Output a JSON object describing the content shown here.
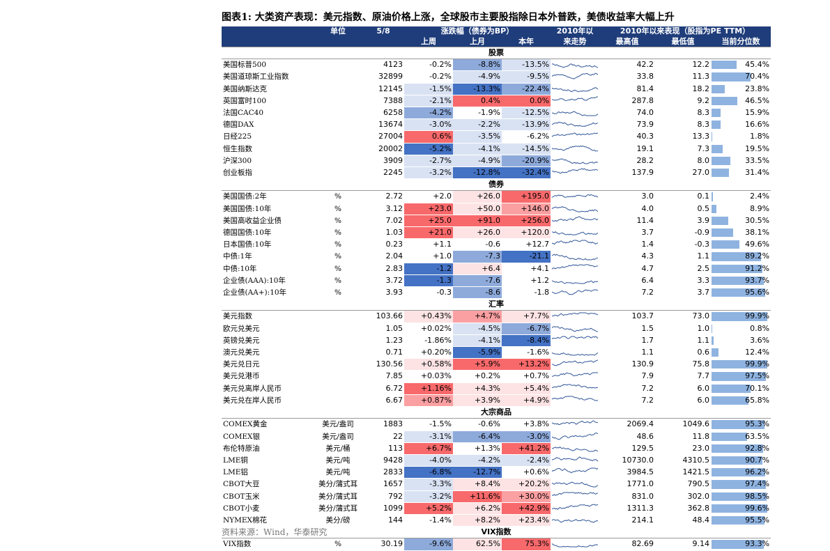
{
  "title": "图表1:  大类资产表现：美元指数、原油价格上涨，全球股市主要股指除日本外普跌，美债收益率大幅上升",
  "header": {
    "unit": "单位",
    "date": "5/8",
    "change_group": "涨跌幅（债券为BP）",
    "week": "上周",
    "month": "上月",
    "ytd": "本年",
    "trend1": "2010年以",
    "trend2": "来走势",
    "since_group": "2010年以来表现（股指为PE TTM）",
    "high": "最高值",
    "low": "最低值",
    "pctile": "当前分位数"
  },
  "colors": {
    "header_bg": "#1f3d7a",
    "neg_strong": "#4472c4",
    "neg_mid": "#8eaadb",
    "neg_light": "#d9e2f3",
    "pos_strong": "#f8696b",
    "pos_mid": "#fba0a2",
    "pos_light": "#fde3e4",
    "bar": "#8fb3e0"
  },
  "sections": [
    {
      "name": "股票",
      "rows": [
        {
          "name": "美国标普500",
          "unit": "",
          "value": "4123",
          "w": "-0.2%",
          "m": "-8.8%",
          "y": "-13.5%",
          "hi": "42.2",
          "lo": "12.2",
          "pct": "45.4%",
          "p": 45.4,
          "cw": "",
          "cm": "neg_mid",
          "cy": "neg_light"
        },
        {
          "name": "美国道琼斯工业指数",
          "unit": "",
          "value": "32899",
          "w": "-0.2%",
          "m": "-4.9%",
          "y": "-9.5%",
          "hi": "33.8",
          "lo": "11.3",
          "pct": "70.4%",
          "p": 70.4,
          "cw": "",
          "cm": "neg_light",
          "cy": "neg_light"
        },
        {
          "name": "美国纳斯达克",
          "unit": "",
          "value": "12145",
          "w": "-1.5%",
          "m": "-13.3%",
          "y": "-22.4%",
          "hi": "81.4",
          "lo": "18.2",
          "pct": "23.8%",
          "p": 23.8,
          "cw": "neg_light",
          "cm": "neg_strong",
          "cy": "neg_mid"
        },
        {
          "name": "英国富时100",
          "unit": "",
          "value": "7388",
          "w": "-2.1%",
          "m": "0.4%",
          "y": "0.0%",
          "hi": "287.8",
          "lo": "9.2",
          "pct": "46.5%",
          "p": 46.5,
          "cw": "neg_light",
          "cm": "pos_strong",
          "cy": "pos_strong"
        },
        {
          "name": "法国CAC40",
          "unit": "",
          "value": "6258",
          "w": "-4.2%",
          "m": "-1.9%",
          "y": "-12.5%",
          "hi": "74.0",
          "lo": "8.3",
          "pct": "15.9%",
          "p": 15.9,
          "cw": "neg_mid",
          "cm": "",
          "cy": "neg_light"
        },
        {
          "name": "德国DAX",
          "unit": "",
          "value": "13674",
          "w": "-3.0%",
          "m": "-2.2%",
          "y": "-13.9%",
          "hi": "73.9",
          "lo": "8.3",
          "pct": "16.6%",
          "p": 16.6,
          "cw": "neg_light",
          "cm": "neg_light",
          "cy": "neg_light"
        },
        {
          "name": "日经225",
          "unit": "",
          "value": "27004",
          "w": "0.6%",
          "m": "-3.5%",
          "y": "-6.2%",
          "hi": "40.3",
          "lo": "13.3",
          "pct": "1.8%",
          "p": 1.8,
          "cw": "pos_strong",
          "cm": "neg_light",
          "cy": ""
        },
        {
          "name": "恒生指数",
          "unit": "",
          "value": "20002",
          "w": "-5.2%",
          "m": "-4.1%",
          "y": "-14.5%",
          "hi": "19.1",
          "lo": "7.3",
          "pct": "19.5%",
          "p": 19.5,
          "cw": "neg_strong",
          "cm": "neg_light",
          "cy": "neg_light"
        },
        {
          "name": "沪深300",
          "unit": "",
          "value": "3909",
          "w": "-2.7%",
          "m": "-4.9%",
          "y": "-20.9%",
          "hi": "28.2",
          "lo": "8.0",
          "pct": "33.5%",
          "p": 33.5,
          "cw": "neg_light",
          "cm": "neg_light",
          "cy": "neg_mid"
        },
        {
          "name": "创业板指",
          "unit": "",
          "value": "2245",
          "w": "-3.2%",
          "m": "-12.8%",
          "y": "-32.4%",
          "hi": "137.9",
          "lo": "27.0",
          "pct": "31.4%",
          "p": 31.4,
          "cw": "neg_light",
          "cm": "neg_strong",
          "cy": "neg_strong"
        }
      ]
    },
    {
      "name": "债券",
      "rows": [
        {
          "name": "美国国债:2年",
          "unit": "%",
          "value": "2.72",
          "w": "+2.0",
          "m": "+26.0",
          "y": "+195.0",
          "hi": "3.0",
          "lo": "0.1",
          "pct": "2.4%",
          "p": 2.4,
          "cw": "",
          "cm": "pos_light",
          "cy": "pos_strong"
        },
        {
          "name": "美国国债:10年",
          "unit": "%",
          "value": "3.12",
          "w": "+23.0",
          "m": "+50.0",
          "y": "+146.0",
          "hi": "4.0",
          "lo": "0.5",
          "pct": "8.9%",
          "p": 8.9,
          "cw": "pos_strong",
          "cm": "pos_light",
          "cy": "pos_mid"
        },
        {
          "name": "美国高收益企业债",
          "unit": "%",
          "value": "7.02",
          "w": "+25.0",
          "m": "+91.0",
          "y": "+256.0",
          "hi": "11.4",
          "lo": "3.9",
          "pct": "30.5%",
          "p": 30.5,
          "cw": "pos_strong",
          "cm": "pos_strong",
          "cy": "pos_strong"
        },
        {
          "name": "德国国债:10年",
          "unit": "%",
          "value": "1.03",
          "w": "+21.0",
          "m": "+26.0",
          "y": "+120.0",
          "hi": "3.7",
          "lo": "-0.9",
          "pct": "38.1%",
          "p": 38.1,
          "cw": "pos_strong",
          "cm": "pos_light",
          "cy": "pos_light"
        },
        {
          "name": "日本国债:10年",
          "unit": "%",
          "value": "0.23",
          "w": "+1.1",
          "m": "-0.6",
          "y": "+12.7",
          "hi": "1.4",
          "lo": "-0.3",
          "pct": "49.6%",
          "p": 49.6,
          "cw": "",
          "cm": "",
          "cy": ""
        },
        {
          "name": "中债:1年",
          "unit": "%",
          "value": "2.04",
          "w": "+1.0",
          "m": "-7.3",
          "y": "-21.1",
          "hi": "4.3",
          "lo": "1.1",
          "pct": "89.2%",
          "p": 89.2,
          "cw": "",
          "cm": "neg_mid",
          "cy": "neg_strong"
        },
        {
          "name": "中债:10年",
          "unit": "%",
          "value": "2.83",
          "w": "-1.2",
          "m": "+6.4",
          "y": "+4.1",
          "hi": "4.7",
          "lo": "2.5",
          "pct": "91.2%",
          "p": 91.2,
          "cw": "neg_strong",
          "cm": "pos_light",
          "cy": ""
        },
        {
          "name": "企业债(AAA):10年",
          "unit": "%",
          "value": "3.72",
          "w": "-1.3",
          "m": "-7.6",
          "y": "+1.2",
          "hi": "6.4",
          "lo": "3.3",
          "pct": "93.7%",
          "p": 93.7,
          "cw": "neg_strong",
          "cm": "neg_mid",
          "cy": ""
        },
        {
          "name": "企业债(AA+):10年",
          "unit": "%",
          "value": "3.93",
          "w": "-0.3",
          "m": "-8.6",
          "y": "-1.8",
          "hi": "7.2",
          "lo": "3.7",
          "pct": "95.6%",
          "p": 95.6,
          "cw": "",
          "cm": "neg_mid",
          "cy": ""
        }
      ]
    },
    {
      "name": "汇率",
      "rows": [
        {
          "name": "美元指数",
          "unit": "",
          "value": "103.66",
          "w": "+0.43%",
          "m": "+4.7%",
          "y": "+7.7%",
          "hi": "103.7",
          "lo": "73.0",
          "pct": "99.9%",
          "p": 99.9,
          "cw": "pos_light",
          "cm": "pos_mid",
          "cy": "pos_light"
        },
        {
          "name": "欧元兑美元",
          "unit": "",
          "value": "1.05",
          "w": "+0.02%",
          "m": "-4.5%",
          "y": "-6.7%",
          "hi": "1.5",
          "lo": "1.0",
          "pct": "0.8%",
          "p": 0.8,
          "cw": "",
          "cm": "neg_light",
          "cy": "neg_mid"
        },
        {
          "name": "英镑兑美元",
          "unit": "",
          "value": "1.23",
          "w": "-1.86%",
          "m": "-4.1%",
          "y": "-8.4%",
          "hi": "1.7",
          "lo": "1.1",
          "pct": "3.6%",
          "p": 3.6,
          "cw": "",
          "cm": "neg_light",
          "cy": "neg_strong"
        },
        {
          "name": "澳元兑美元",
          "unit": "",
          "value": "0.71",
          "w": "+0.20%",
          "m": "-5.9%",
          "y": "-1.6%",
          "hi": "1.1",
          "lo": "0.6",
          "pct": "12.4%",
          "p": 12.4,
          "cw": "",
          "cm": "neg_strong",
          "cy": ""
        },
        {
          "name": "美元兑日元",
          "unit": "",
          "value": "130.56",
          "w": "+0.58%",
          "m": "+5.9%",
          "y": "+13.2%",
          "hi": "130.9",
          "lo": "75.8",
          "pct": "99.9%",
          "p": 99.9,
          "cw": "pos_light",
          "cm": "pos_strong",
          "cy": "pos_strong"
        },
        {
          "name": "美元兑港币",
          "unit": "",
          "value": "7.85",
          "w": "+0.03%",
          "m": "+0.2%",
          "y": "+0.7%",
          "hi": "7.9",
          "lo": "7.7",
          "pct": "97.5%",
          "p": 97.5,
          "cw": "",
          "cm": "",
          "cy": ""
        },
        {
          "name": "美元兑离岸人民币",
          "unit": "",
          "value": "6.72",
          "w": "+1.16%",
          "m": "+4.3%",
          "y": "+5.4%",
          "hi": "7.2",
          "lo": "6.0",
          "pct": "70.1%",
          "p": 70.1,
          "cw": "pos_strong",
          "cm": "pos_light",
          "cy": "pos_light"
        },
        {
          "name": "美元兑在岸人民币",
          "unit": "",
          "value": "6.67",
          "w": "+0.87%",
          "m": "+3.9%",
          "y": "+4.9%",
          "hi": "7.2",
          "lo": "6.0",
          "pct": "65.8%",
          "p": 65.8,
          "cw": "pos_mid",
          "cm": "pos_light",
          "cy": "pos_light"
        }
      ]
    },
    {
      "name": "大宗商品",
      "rows": [
        {
          "name": "COMEX黄金",
          "unit": "美元/盎司",
          "value": "1883",
          "w": "-1.5%",
          "m": "-0.6%",
          "y": "+3.8%",
          "hi": "2069.4",
          "lo": "1049.6",
          "pct": "95.3%",
          "p": 95.3,
          "cw": "",
          "cm": "",
          "cy": ""
        },
        {
          "name": "COMEX银",
          "unit": "美元/盎司",
          "value": "22",
          "w": "-3.1%",
          "m": "-6.4%",
          "y": "-3.0%",
          "hi": "48.6",
          "lo": "11.8",
          "pct": "63.5%",
          "p": 63.5,
          "cw": "neg_light",
          "cm": "neg_mid",
          "cy": "neg_mid"
        },
        {
          "name": "布伦特原油",
          "unit": "美元/桶",
          "value": "113",
          "w": "+6.7%",
          "m": "+1.3%",
          "y": "+41.2%",
          "hi": "129.5",
          "lo": "23.0",
          "pct": "92.8%",
          "p": 92.8,
          "cw": "pos_strong",
          "cm": "",
          "cy": "pos_strong"
        },
        {
          "name": "LME铜",
          "unit": "美元/吨",
          "value": "9428",
          "w": "-4.0%",
          "m": "-4.2%",
          "y": "-2.4%",
          "hi": "10730.0",
          "lo": "4310.5",
          "pct": "90.7%",
          "p": 90.7,
          "cw": "neg_light",
          "cm": "neg_light",
          "cy": "neg_light"
        },
        {
          "name": "LME铝",
          "unit": "美元/吨",
          "value": "2833",
          "w": "-6.8%",
          "m": "-12.7%",
          "y": "+0.6%",
          "hi": "3984.5",
          "lo": "1421.5",
          "pct": "96.2%",
          "p": 96.2,
          "cw": "neg_strong",
          "cm": "neg_strong",
          "cy": ""
        },
        {
          "name": "CBOT大豆",
          "unit": "美分/蒲式耳",
          "value": "1657",
          "w": "-3.3%",
          "m": "+8.4%",
          "y": "+20.2%",
          "hi": "1771.0",
          "lo": "790.5",
          "pct": "97.4%",
          "p": 97.4,
          "cw": "neg_light",
          "cm": "pos_light",
          "cy": "pos_light"
        },
        {
          "name": "CBOT玉米",
          "unit": "美分/蒲式耳",
          "value": "792",
          "w": "-3.2%",
          "m": "+11.6%",
          "y": "+30.0%",
          "hi": "831.0",
          "lo": "302.0",
          "pct": "98.5%",
          "p": 98.5,
          "cw": "neg_light",
          "cm": "pos_strong",
          "cy": "pos_mid"
        },
        {
          "name": "CBOT小麦",
          "unit": "美分/蒲式耳",
          "value": "1099",
          "w": "+5.2%",
          "m": "+6.2%",
          "y": "+42.9%",
          "hi": "1311.3",
          "lo": "362.8",
          "pct": "99.6%",
          "p": 99.6,
          "cw": "pos_strong",
          "cm": "pos_light",
          "cy": "pos_strong"
        },
        {
          "name": "NYMEX棉花",
          "unit": "美分/磅",
          "value": "144",
          "w": "-1.4%",
          "m": "+8.2%",
          "y": "+23.4%",
          "hi": "214.1",
          "lo": "48.4",
          "pct": "95.5%",
          "p": 95.5,
          "cw": "",
          "cm": "pos_light",
          "cy": "pos_light"
        }
      ]
    },
    {
      "name": "VIX指数",
      "rows": [
        {
          "name": "VIX指数",
          "unit": "%",
          "value": "30.19",
          "w": "-9.6%",
          "m": "62.5%",
          "y": "75.3%",
          "hi": "82.69",
          "lo": "9.14",
          "pct": "93.3%",
          "p": 93.3,
          "cw": "neg_mid",
          "cm": "pos_light",
          "cy": "pos_strong"
        }
      ]
    }
  ],
  "source": "资料来源：Wind，华泰研究"
}
